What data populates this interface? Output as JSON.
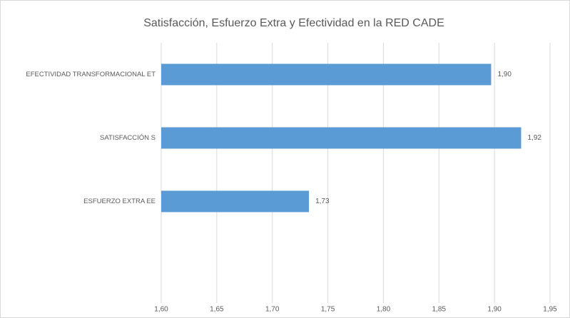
{
  "chart_data": {
    "type": "barh",
    "title": "Satisfacción, Esfuerzo Extra y Efectividad en la RED CADE",
    "categories": [
      "EFECTIVIDAD TRANSFORMACIONAL ET",
      "SATISFACCIÓN S",
      "ESFUERZO EXTRA EE"
    ],
    "values": [
      1.897,
      1.924,
      1.733
    ],
    "value_labels": [
      "1,90",
      "1,92",
      "1,73"
    ],
    "color": "#5b9bd5",
    "xlim": [
      1.6,
      1.95
    ],
    "xticks": [
      {
        "value": 1.6,
        "label": "1,60"
      },
      {
        "value": 1.65,
        "label": "1,65"
      },
      {
        "value": 1.7,
        "label": "1,70"
      },
      {
        "value": 1.75,
        "label": "1,75"
      },
      {
        "value": 1.8,
        "label": "1,80"
      },
      {
        "value": 1.85,
        "label": "1,85"
      },
      {
        "value": 1.9,
        "label": "1,90"
      },
      {
        "value": 1.95,
        "label": "1,95"
      }
    ],
    "grid": true
  }
}
